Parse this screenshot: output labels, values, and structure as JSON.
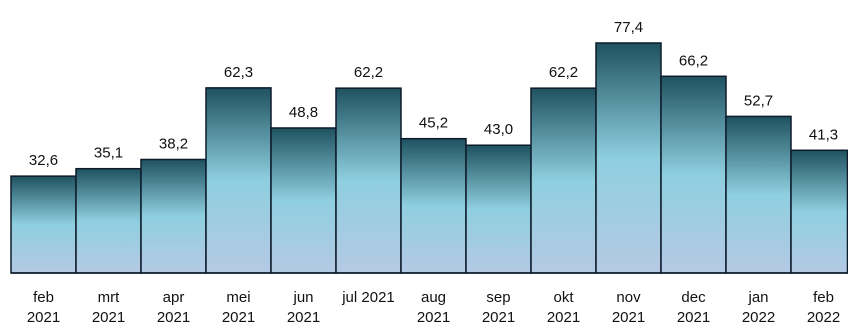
{
  "chart_data": {
    "type": "bar",
    "title": "",
    "xlabel": "",
    "ylabel": "",
    "categories": [
      [
        "feb",
        "2021"
      ],
      [
        "mrt",
        "2021"
      ],
      [
        "apr",
        "2021"
      ],
      [
        "mei",
        "2021"
      ],
      [
        "jun",
        "2021"
      ],
      [
        "jul 2021"
      ],
      [
        "aug",
        "2021"
      ],
      [
        "sep",
        "2021"
      ],
      [
        "okt",
        "2021"
      ],
      [
        "nov",
        "2021"
      ],
      [
        "dec",
        "2021"
      ],
      [
        "jan",
        "2022"
      ],
      [
        "feb",
        "2022"
      ]
    ],
    "values": [
      32.6,
      35.1,
      38.2,
      62.3,
      48.8,
      62.2,
      45.2,
      43.0,
      62.2,
      77.4,
      66.2,
      52.7,
      41.3
    ],
    "value_labels": [
      "32,6",
      "35,1",
      "38,2",
      "62,3",
      "48,8",
      "62,2",
      "45,2",
      "43,0",
      "62,2",
      "77,4",
      "66,2",
      "52,7",
      "41,3"
    ],
    "ylim": [
      0,
      80
    ],
    "grid": false,
    "legend": "none",
    "colors": {
      "bar_top": "#1f5260",
      "bar_mid": "#8ecfdf",
      "bar_bottom": "#b5c9e4",
      "bar_stroke": "#0d1b2a",
      "text": "#111111"
    }
  }
}
